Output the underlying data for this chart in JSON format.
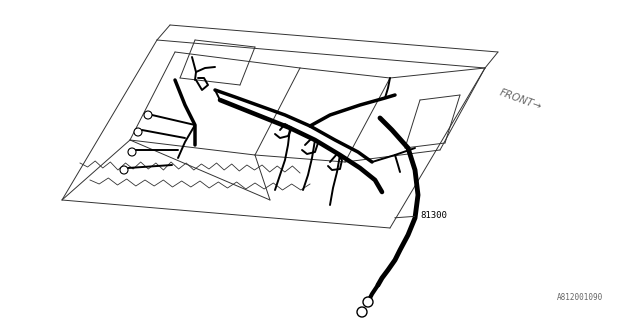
{
  "bg_color": "#ffffff",
  "line_color": "#000000",
  "panel_line_color": "#333333",
  "label_color": "#666666",
  "label_81300": "81300",
  "label_front": "FRONT",
  "label_diagram_id": "A812001090",
  "panel_lw": 0.7,
  "wiring_lw": 2.5,
  "wiring_lw_thin": 1.4,
  "annotation_fontsize": 6.5,
  "id_fontsize": 5.5,
  "front_fontsize": 7.5
}
